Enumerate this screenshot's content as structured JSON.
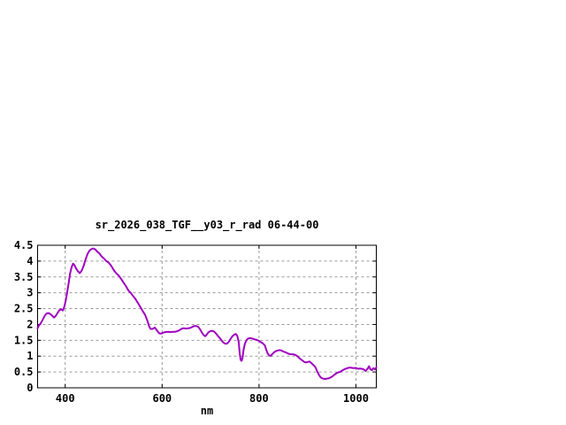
{
  "chart": {
    "title": "sr_2026_038_TGF__y03_r_rad 06-44-00",
    "xlabel": "nm"
  },
  "colors": {
    "background": "#ffffff",
    "axis": "#000000",
    "grid": "#9a9a9a",
    "line": "#a000c0",
    "text": "#000000"
  },
  "chart_data": {
    "type": "line",
    "title": "sr_2026_038_TGF__y03_r_rad 06-44-00",
    "xlabel": "nm",
    "ylabel": "",
    "xlim": [
      343,
      1042
    ],
    "ylim": [
      0,
      4.5
    ],
    "x_ticks": [
      400,
      600,
      800,
      1000
    ],
    "y_ticks": [
      0,
      0.5,
      1,
      1.5,
      2,
      2.5,
      3,
      3.5,
      4,
      4.5
    ],
    "grid": true,
    "legend_position": "none",
    "line_color": "#a000c0",
    "points": [
      [
        343,
        1.88
      ],
      [
        346,
        1.97
      ],
      [
        350,
        2.05
      ],
      [
        354,
        2.16
      ],
      [
        358,
        2.28
      ],
      [
        362,
        2.35
      ],
      [
        366,
        2.36
      ],
      [
        370,
        2.32
      ],
      [
        374,
        2.26
      ],
      [
        377,
        2.22
      ],
      [
        380,
        2.26
      ],
      [
        384,
        2.36
      ],
      [
        388,
        2.45
      ],
      [
        392,
        2.48
      ],
      [
        395,
        2.44
      ],
      [
        398,
        2.55
      ],
      [
        401,
        2.75
      ],
      [
        404,
        3.0
      ],
      [
        407,
        3.3
      ],
      [
        410,
        3.6
      ],
      [
        413,
        3.8
      ],
      [
        416,
        3.92
      ],
      [
        419,
        3.88
      ],
      [
        422,
        3.78
      ],
      [
        426,
        3.68
      ],
      [
        430,
        3.62
      ],
      [
        434,
        3.7
      ],
      [
        438,
        3.85
      ],
      [
        442,
        4.05
      ],
      [
        446,
        4.22
      ],
      [
        450,
        4.33
      ],
      [
        454,
        4.38
      ],
      [
        458,
        4.4
      ],
      [
        462,
        4.37
      ],
      [
        466,
        4.3
      ],
      [
        470,
        4.25
      ],
      [
        475,
        4.15
      ],
      [
        480,
        4.08
      ],
      [
        485,
        4.0
      ],
      [
        490,
        3.95
      ],
      [
        495,
        3.85
      ],
      [
        500,
        3.72
      ],
      [
        505,
        3.62
      ],
      [
        510,
        3.55
      ],
      [
        515,
        3.45
      ],
      [
        520,
        3.33
      ],
      [
        525,
        3.22
      ],
      [
        530,
        3.08
      ],
      [
        535,
        3.0
      ],
      [
        540,
        2.9
      ],
      [
        545,
        2.8
      ],
      [
        550,
        2.68
      ],
      [
        555,
        2.55
      ],
      [
        560,
        2.42
      ],
      [
        565,
        2.3
      ],
      [
        570,
        2.1
      ],
      [
        573,
        1.95
      ],
      [
        576,
        1.86
      ],
      [
        580,
        1.86
      ],
      [
        585,
        1.9
      ],
      [
        590,
        1.8
      ],
      [
        594,
        1.72
      ],
      [
        598,
        1.71
      ],
      [
        602,
        1.74
      ],
      [
        607,
        1.76
      ],
      [
        612,
        1.77
      ],
      [
        617,
        1.76
      ],
      [
        622,
        1.77
      ],
      [
        627,
        1.77
      ],
      [
        632,
        1.79
      ],
      [
        637,
        1.83
      ],
      [
        641,
        1.87
      ],
      [
        645,
        1.88
      ],
      [
        650,
        1.87
      ],
      [
        654,
        1.88
      ],
      [
        658,
        1.89
      ],
      [
        662,
        1.92
      ],
      [
        666,
        1.95
      ],
      [
        670,
        1.95
      ],
      [
        674,
        1.93
      ],
      [
        678,
        1.85
      ],
      [
        682,
        1.75
      ],
      [
        686,
        1.66
      ],
      [
        689,
        1.63
      ],
      [
        692,
        1.68
      ],
      [
        695,
        1.74
      ],
      [
        699,
        1.79
      ],
      [
        703,
        1.8
      ],
      [
        707,
        1.78
      ],
      [
        711,
        1.72
      ],
      [
        715,
        1.64
      ],
      [
        720,
        1.55
      ],
      [
        725,
        1.45
      ],
      [
        729,
        1.4
      ],
      [
        733,
        1.39
      ],
      [
        737,
        1.44
      ],
      [
        741,
        1.54
      ],
      [
        745,
        1.63
      ],
      [
        749,
        1.68
      ],
      [
        752,
        1.7
      ],
      [
        755,
        1.65
      ],
      [
        758,
        1.45
      ],
      [
        760,
        1.1
      ],
      [
        762,
        0.88
      ],
      [
        764,
        0.85
      ],
      [
        766,
        0.95
      ],
      [
        768,
        1.2
      ],
      [
        771,
        1.4
      ],
      [
        774,
        1.5
      ],
      [
        777,
        1.55
      ],
      [
        781,
        1.57
      ],
      [
        785,
        1.56
      ],
      [
        789,
        1.54
      ],
      [
        793,
        1.52
      ],
      [
        797,
        1.5
      ],
      [
        800,
        1.48
      ],
      [
        804,
        1.44
      ],
      [
        808,
        1.4
      ],
      [
        812,
        1.34
      ],
      [
        815,
        1.2
      ],
      [
        818,
        1.08
      ],
      [
        821,
        1.02
      ],
      [
        824,
        1.01
      ],
      [
        827,
        1.06
      ],
      [
        831,
        1.12
      ],
      [
        835,
        1.16
      ],
      [
        839,
        1.18
      ],
      [
        843,
        1.19
      ],
      [
        847,
        1.17
      ],
      [
        851,
        1.14
      ],
      [
        855,
        1.12
      ],
      [
        860,
        1.08
      ],
      [
        865,
        1.06
      ],
      [
        870,
        1.06
      ],
      [
        875,
        1.04
      ],
      [
        879,
        1.0
      ],
      [
        883,
        0.94
      ],
      [
        888,
        0.88
      ],
      [
        893,
        0.82
      ],
      [
        897,
        0.8
      ],
      [
        901,
        0.82
      ],
      [
        904,
        0.83
      ],
      [
        908,
        0.78
      ],
      [
        912,
        0.72
      ],
      [
        916,
        0.66
      ],
      [
        920,
        0.52
      ],
      [
        924,
        0.4
      ],
      [
        928,
        0.32
      ],
      [
        932,
        0.29
      ],
      [
        936,
        0.28
      ],
      [
        940,
        0.29
      ],
      [
        944,
        0.3
      ],
      [
        948,
        0.33
      ],
      [
        952,
        0.37
      ],
      [
        956,
        0.42
      ],
      [
        960,
        0.46
      ],
      [
        964,
        0.49
      ],
      [
        968,
        0.51
      ],
      [
        972,
        0.55
      ],
      [
        976,
        0.58
      ],
      [
        980,
        0.61
      ],
      [
        984,
        0.63
      ],
      [
        988,
        0.64
      ],
      [
        992,
        0.63
      ],
      [
        996,
        0.62
      ],
      [
        1000,
        0.63
      ],
      [
        1004,
        0.6
      ],
      [
        1008,
        0.61
      ],
      [
        1012,
        0.6
      ],
      [
        1016,
        0.58
      ],
      [
        1020,
        0.53
      ],
      [
        1024,
        0.6
      ],
      [
        1027,
        0.68
      ],
      [
        1030,
        0.58
      ],
      [
        1033,
        0.56
      ],
      [
        1036,
        0.62
      ],
      [
        1039,
        0.58
      ],
      [
        1042,
        0.64
      ]
    ]
  }
}
